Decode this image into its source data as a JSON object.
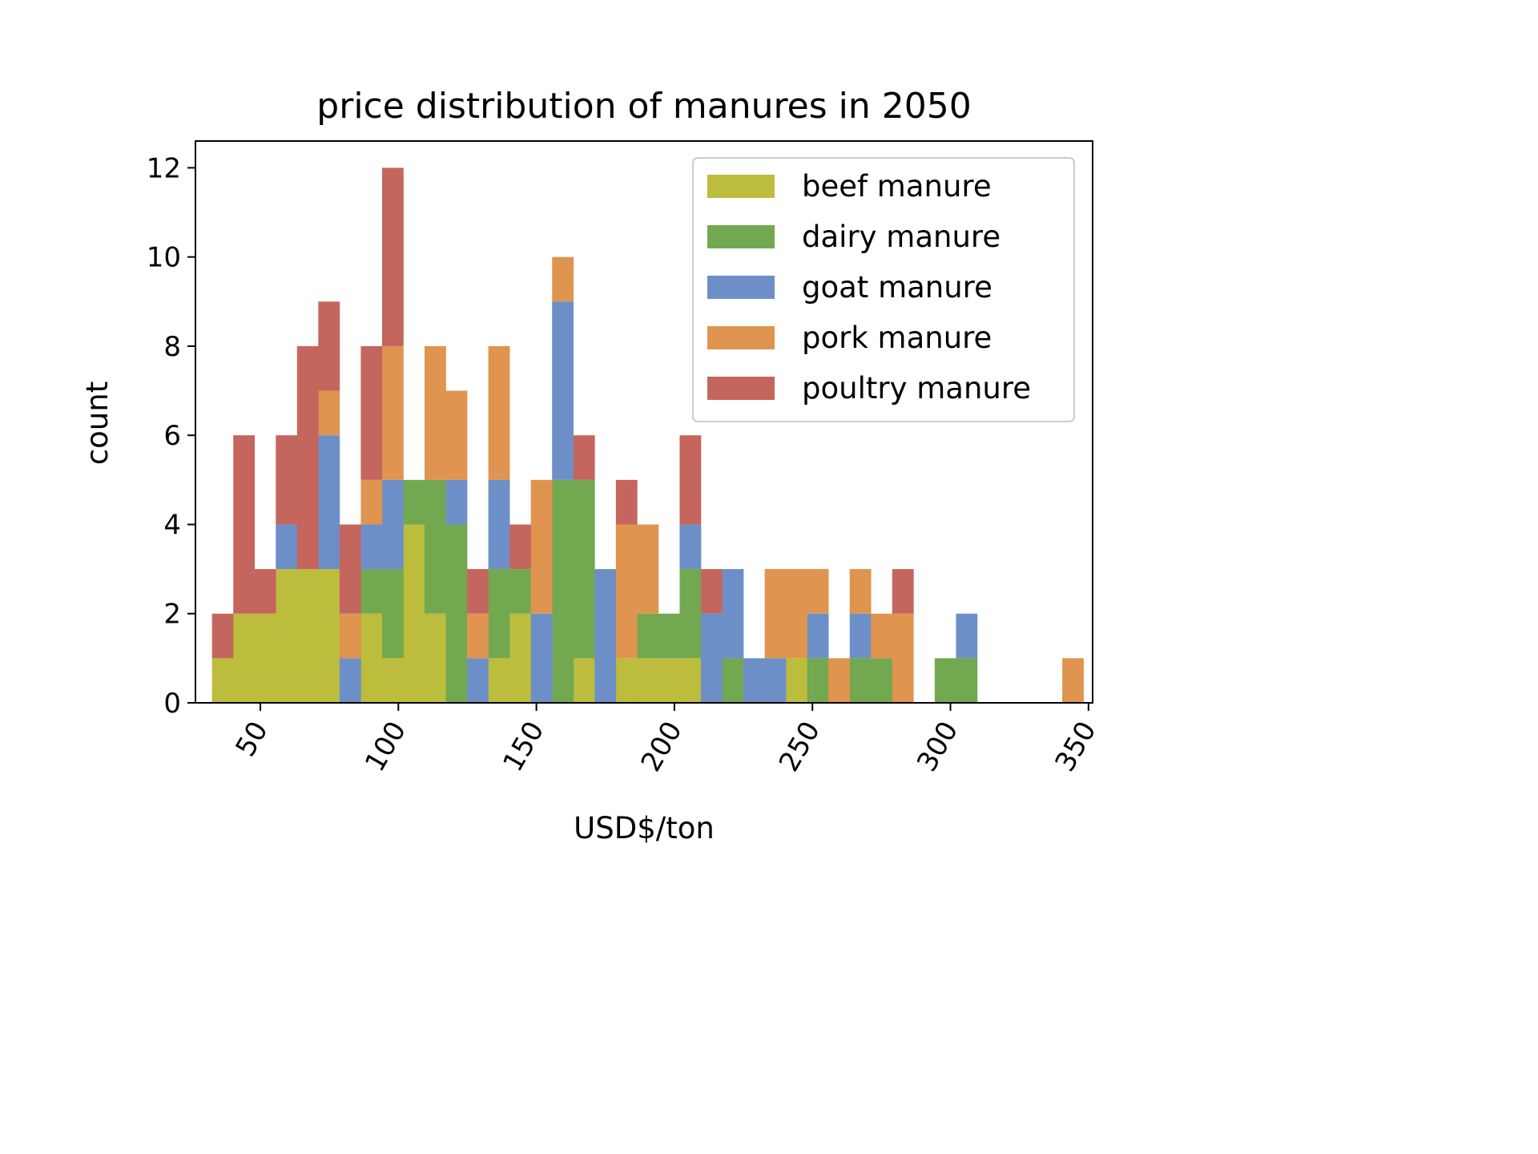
{
  "chart_data": {
    "type": "bar",
    "stacked": true,
    "title": "price distribution of manures in 2050",
    "xlabel": "USD$/ton",
    "ylabel": "count",
    "xlim": [
      26.5,
      351.5
    ],
    "ylim": [
      0,
      12.6
    ],
    "xticks": [
      50,
      100,
      150,
      200,
      250,
      300,
      350
    ],
    "yticks": [
      0,
      2,
      4,
      6,
      8,
      10,
      12
    ],
    "grid": false,
    "legend_position": "top-right",
    "bin_width": 7.7,
    "bin_starts": [
      32.5,
      40.2,
      47.9,
      55.6,
      63.3,
      71.0,
      78.7,
      86.4,
      94.1,
      101.8,
      109.5,
      117.2,
      124.9,
      132.6,
      140.3,
      148.0,
      155.7,
      163.4,
      171.1,
      178.8,
      186.5,
      194.2,
      201.9,
      209.6,
      217.3,
      225.0,
      232.7,
      240.4,
      248.1,
      255.8,
      263.5,
      271.2,
      278.9,
      286.6,
      294.3,
      302.0,
      309.7,
      317.4,
      325.1,
      332.8,
      340.5
    ],
    "series": [
      {
        "name": "beef manure",
        "color": "#bcbd3c",
        "values": [
          1,
          2,
          2,
          3,
          3,
          3,
          0,
          2,
          1,
          4,
          2,
          0,
          0,
          1,
          2,
          0,
          0,
          1,
          0,
          1,
          1,
          1,
          1,
          0,
          0,
          0,
          0,
          1,
          0,
          0,
          0,
          0,
          0,
          0,
          0,
          0,
          0,
          0,
          0,
          0,
          0
        ]
      },
      {
        "name": "dairy manure",
        "color": "#72a84f",
        "values": [
          0,
          0,
          0,
          0,
          0,
          0,
          0,
          1,
          2,
          1,
          3,
          4,
          0,
          2,
          1,
          0,
          5,
          4,
          0,
          0,
          1,
          1,
          2,
          0,
          1,
          0,
          0,
          0,
          1,
          0,
          1,
          1,
          0,
          0,
          1,
          1,
          0,
          0,
          0,
          0,
          0
        ]
      },
      {
        "name": "goat manure",
        "color": "#6d8fc7",
        "values": [
          0,
          0,
          0,
          1,
          0,
          3,
          1,
          1,
          2,
          0,
          0,
          1,
          1,
          2,
          0,
          2,
          4,
          0,
          3,
          0,
          0,
          0,
          1,
          2,
          2,
          1,
          1,
          0,
          1,
          0,
          1,
          0,
          0,
          0,
          0,
          1,
          0,
          0,
          0,
          0,
          0
        ]
      },
      {
        "name": "pork manure",
        "color": "#df944f",
        "values": [
          0,
          0,
          0,
          0,
          0,
          1,
          1,
          1,
          3,
          0,
          3,
          2,
          1,
          3,
          0,
          3,
          1,
          0,
          0,
          3,
          2,
          0,
          0,
          0,
          0,
          0,
          2,
          2,
          1,
          1,
          1,
          1,
          2,
          0,
          0,
          0,
          0,
          0,
          0,
          0,
          1
        ]
      },
      {
        "name": "poultry manure",
        "color": "#c4665e",
        "values": [
          1,
          4,
          1,
          2,
          5,
          2,
          2,
          3,
          4,
          0,
          0,
          0,
          1,
          0,
          1,
          0,
          0,
          1,
          0,
          1,
          0,
          0,
          2,
          1,
          0,
          0,
          0,
          0,
          0,
          0,
          0,
          0,
          1,
          0,
          0,
          0,
          0,
          0,
          0,
          0,
          0
        ]
      }
    ]
  }
}
